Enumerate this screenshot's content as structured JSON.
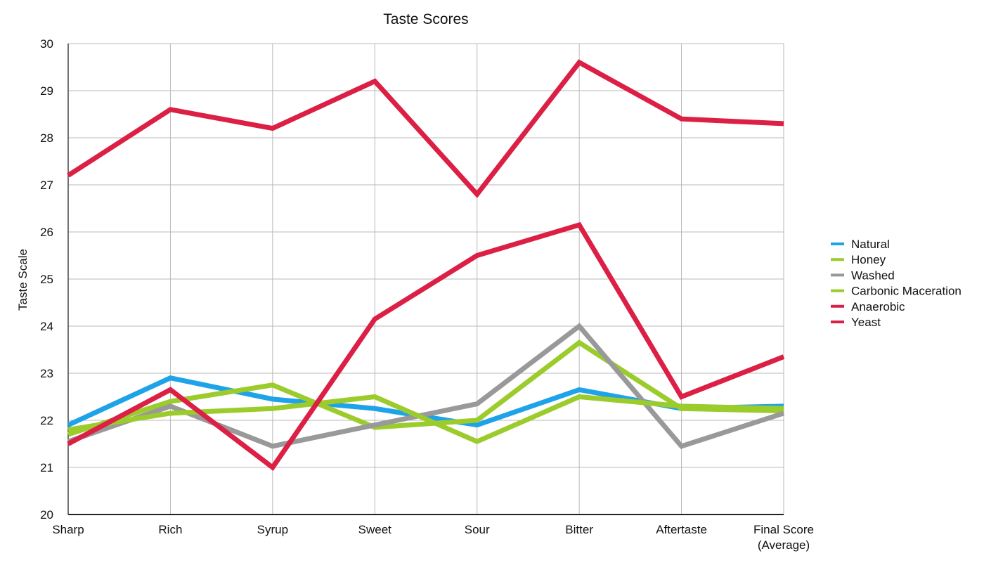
{
  "chart_data": {
    "type": "line",
    "title": "Taste Scores",
    "xlabel": "",
    "ylabel": "Taste Scale",
    "categories": [
      "Sharp",
      "Rich",
      "Syrup",
      "Sweet",
      "Sour",
      "Bitter",
      "Aftertaste",
      "Final Score|(Average)"
    ],
    "ylim": [
      20,
      30
    ],
    "yticks": [
      "20",
      "21",
      "22",
      "23",
      "24",
      "25",
      "26",
      "27",
      "28",
      "29",
      "30"
    ],
    "grid": true,
    "legend_position": "right",
    "series": [
      {
        "name": "Natural",
        "color": "#1fa3e8",
        "values": [
          21.9,
          22.9,
          22.45,
          22.25,
          21.9,
          22.65,
          22.25,
          22.3
        ]
      },
      {
        "name": "Honey",
        "color": "#9ccc2c",
        "values": [
          21.7,
          22.4,
          22.75,
          21.85,
          22.0,
          23.65,
          22.25,
          22.2
        ]
      },
      {
        "name": "Washed",
        "color": "#999999",
        "values": [
          21.55,
          22.3,
          21.45,
          21.9,
          22.35,
          24.0,
          21.45,
          22.15
        ]
      },
      {
        "name": "Carbonic Maceration",
        "color": "#9ccc2c",
        "values": [
          21.8,
          22.15,
          22.25,
          22.5,
          21.55,
          22.5,
          22.3,
          22.25
        ]
      },
      {
        "name": "Anaerobic",
        "color": "#dc1f45",
        "values": [
          21.5,
          22.65,
          21.0,
          24.15,
          25.5,
          26.15,
          22.5,
          23.35
        ]
      },
      {
        "name": "Yeast",
        "color": "#dc1f45",
        "values": [
          27.2,
          28.6,
          28.2,
          29.2,
          26.8,
          29.6,
          28.4,
          28.3
        ]
      }
    ]
  }
}
